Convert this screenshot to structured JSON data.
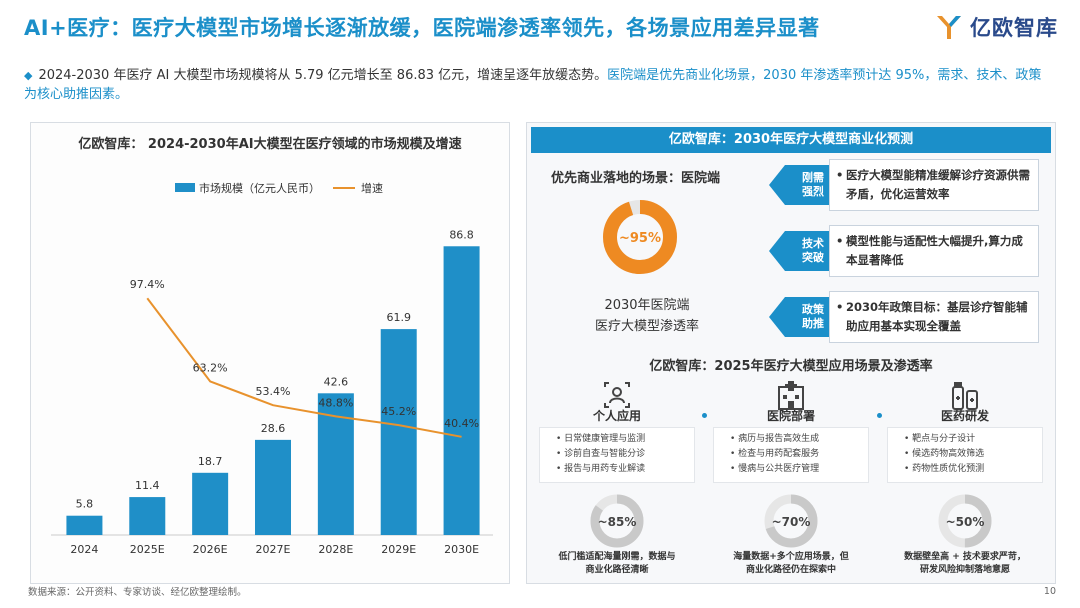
{
  "page": {
    "title": "AI+医疗：医疗大模型市场增长逐渐放缓，医院端渗透率领先，各场景应用差异显著",
    "logo_text": "亿欧智库",
    "summary_main": "2024-2030 年医疗 AI 大模型市场规模将从 5.79 亿元增长至 86.83 亿元，增速呈逐年放缓态势。",
    "summary_highlight": "医院端是优先商业化场景，2030 年渗透率预计达 95%，需求、技术、政策为核心助推因素。",
    "source": "数据来源：公开资料、专家访谈、经亿欧整理绘制。",
    "page_number": "10"
  },
  "colors": {
    "accent": "#1b8fc9",
    "bar": "#1f8fc8",
    "line": "#e8922d",
    "ring_orange": "#ee8a22",
    "ring_gray": "#e6e6e6"
  },
  "chart_data": {
    "type": "bar",
    "title": "亿欧智库：  2024-2030年AI大模型在医疗领域的市场规模及增速",
    "categories": [
      "2024",
      "2025E",
      "2026E",
      "2027E",
      "2028E",
      "2029E",
      "2030E"
    ],
    "series": [
      {
        "name": "市场规模（亿元人民币）",
        "type": "bar",
        "values": [
          5.8,
          11.4,
          18.7,
          28.6,
          42.6,
          61.9,
          86.8
        ],
        "labels": [
          "5.8",
          "11.4",
          "18.7",
          "28.6",
          "42.6",
          "61.9",
          "86.8"
        ]
      },
      {
        "name": "增速",
        "type": "line",
        "axis": "secondary",
        "x": [
          "2025E",
          "2026E",
          "2027E",
          "2028E",
          "2029E",
          "2030E"
        ],
        "values": [
          97.4,
          63.2,
          53.4,
          48.8,
          45.2,
          40.4
        ],
        "labels": [
          "97.4%",
          "63.2%",
          "53.4%",
          "48.8%",
          "45.2%",
          "40.4%"
        ]
      }
    ],
    "legend": "top-center",
    "grid": false,
    "ylim": [
      0,
      95
    ],
    "y2lim": [
      0,
      130
    ]
  },
  "forecast": {
    "header": "亿欧智库：2030年医疗大模型商业化预测",
    "scene_label": "优先商业落地的场景：医院端",
    "ring_value": 0.95,
    "ring_label": "~95%",
    "caption_line1": "2030年医院端",
    "caption_line2": "医疗大模型渗透率",
    "drivers": [
      {
        "tag_line1": "刚需",
        "tag_line2": "强烈",
        "text": "医疗大模型能精准缓解诊疗资源供需矛盾，优化运营效率"
      },
      {
        "tag_line1": "技术",
        "tag_line2": "突破",
        "text": "模型性能与适配性大幅提升,算力成本显著降低"
      },
      {
        "tag_line1": "政策",
        "tag_line2": "助推",
        "text": "2030年政策目标：基层诊疗智能辅助应用基本实现全覆盖"
      }
    ]
  },
  "scenes": {
    "title": "亿欧智库：2025年医疗大模型应用场景及渗透率",
    "items": [
      {
        "name": "个人应用",
        "icon": "person-scan-icon",
        "bullets": [
          "日常健康管理与监测",
          "诊前自查与智能分诊",
          "报告与用药专业解读"
        ],
        "ring_value": 0.85,
        "ring_label": "~85%",
        "caption_line1": "低门槛适配海量刚需，数据与",
        "caption_line2": "商业化路径清晰"
      },
      {
        "name": "医院部署",
        "icon": "hospital-icon",
        "bullets": [
          "病历与报告高效生成",
          "检查与用药配套服务",
          "慢病与公共医疗管理"
        ],
        "ring_value": 0.7,
        "ring_label": "~70%",
        "caption_line1": "海量数据+多个应用场景，但",
        "caption_line2": "商业化路径仍在探索中"
      },
      {
        "name": "医药研发",
        "icon": "medicine-icon",
        "bullets": [
          "靶点与分子设计",
          "候选药物高效筛选",
          "药物性质优化预测"
        ],
        "ring_value": 0.5,
        "ring_label": "~50%",
        "caption_line1": "数据壁垒高 + 技术要求严苛，",
        "caption_line2": "研发风险抑制落地意愿"
      }
    ]
  }
}
